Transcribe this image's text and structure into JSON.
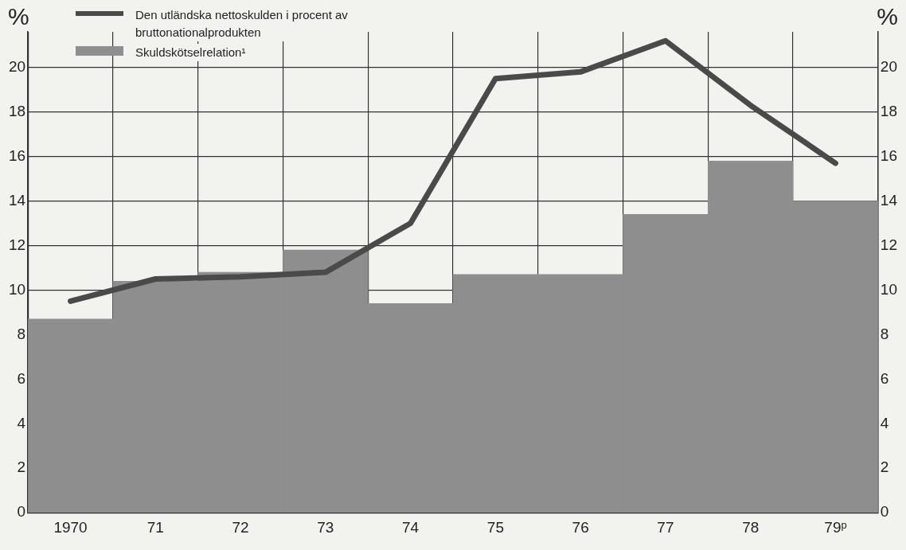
{
  "chart_data": {
    "type": "bar",
    "categories": [
      "1970",
      "71",
      "72",
      "73",
      "74",
      "75",
      "76",
      "77",
      "78",
      "79ᵖ"
    ],
    "series": [
      {
        "name": "Skuldskötselrelation¹",
        "color": "#8e8e8e",
        "values": [
          8.7,
          10.4,
          10.8,
          11.8,
          9.4,
          10.7,
          10.7,
          13.4,
          15.8,
          14.0
        ]
      },
      {
        "name": "Den utländska nettoskulden i procent av bruttonationalprodukten",
        "type": "line",
        "color": "#4a4a4a",
        "values": [
          9.5,
          10.5,
          10.6,
          10.8,
          13.0,
          19.5,
          19.8,
          21.2,
          18.3,
          15.7
        ]
      }
    ],
    "ylabel": "%",
    "y2label": "%",
    "ylim": [
      0,
      21.6
    ],
    "yticks": [
      0,
      2,
      4,
      6,
      8,
      10,
      12,
      14,
      16,
      18,
      20
    ],
    "y2lim": [
      0,
      21.6
    ],
    "y2ticks": [
      0,
      2,
      4,
      6,
      8,
      10,
      12,
      14,
      16,
      18,
      20
    ],
    "grid": true,
    "legend": "top left",
    "marker": "none",
    "line_style": "solid"
  }
}
